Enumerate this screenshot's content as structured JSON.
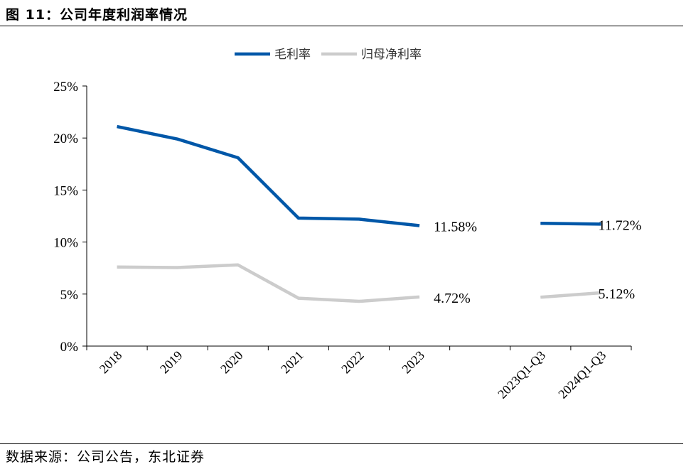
{
  "figure": {
    "title": "图 11：公司年度利润率情况",
    "source": "数据来源：公司公告，东北证券"
  },
  "chart_data": {
    "type": "line",
    "categories": [
      "2018",
      "2019",
      "2020",
      "2021",
      "2022",
      "2023",
      "",
      "2023Q1-Q3",
      "2024Q1-Q3"
    ],
    "ylim": [
      0,
      25
    ],
    "yticks": [
      "0%",
      "5%",
      "10%",
      "15%",
      "20%",
      "25%"
    ],
    "legend_position": "top-center",
    "grid": false,
    "series": [
      {
        "name": "毛利率",
        "color": "#0057a8",
        "segments": [
          {
            "indices": [
              0,
              1,
              2,
              3,
              4,
              5
            ],
            "values": [
              21.1,
              19.9,
              18.1,
              12.3,
              12.2,
              11.58
            ]
          },
          {
            "indices": [
              7,
              8
            ],
            "values": [
              11.8,
              11.72
            ]
          }
        ],
        "labels": [
          {
            "index": 5,
            "text": "11.58%"
          },
          {
            "index": 8,
            "text": "11.72%"
          }
        ]
      },
      {
        "name": "归母净利率",
        "color": "#cccccc",
        "segments": [
          {
            "indices": [
              0,
              1,
              2,
              3,
              4,
              5
            ],
            "values": [
              7.6,
              7.55,
              7.8,
              4.6,
              4.3,
              4.72
            ]
          },
          {
            "indices": [
              7,
              8
            ],
            "values": [
              4.7,
              5.12
            ]
          }
        ],
        "labels": [
          {
            "index": 5,
            "text": "4.72%"
          },
          {
            "index": 8,
            "text": "5.12%"
          }
        ]
      }
    ]
  }
}
